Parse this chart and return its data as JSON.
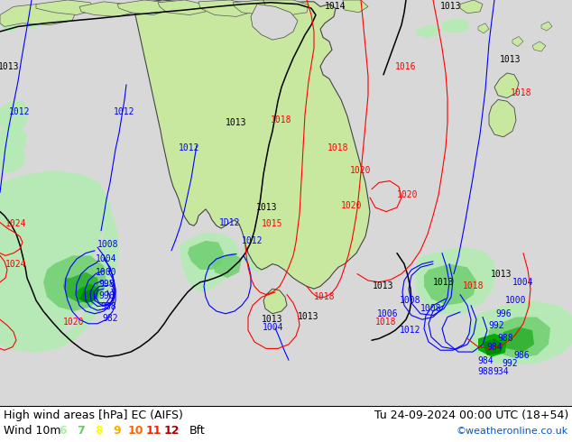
{
  "title_left": "High wind areas [hPa] EC (AIFS)",
  "title_right": "Tu 24-09-2024 00:00 UTC (18+54)",
  "subtitle_left": "Wind 10m",
  "legend_nums": [
    "6",
    "7",
    "8",
    "9",
    "10",
    "11",
    "12"
  ],
  "legend_colors": [
    "#aaf0aa",
    "#66cc66",
    "#ffff00",
    "#ffaa00",
    "#ff6600",
    "#ff2200",
    "#aa0000"
  ],
  "legend_bft": "Bft",
  "copyright": "©weatheronline.co.uk",
  "bg_color": "#d0d0d0",
  "sea_color": "#d8d8d8",
  "land_color": "#c8e8a0",
  "font_size_title": 9,
  "font_size_legend": 9,
  "font_size_copyright": 8,
  "font_size_label": 7
}
